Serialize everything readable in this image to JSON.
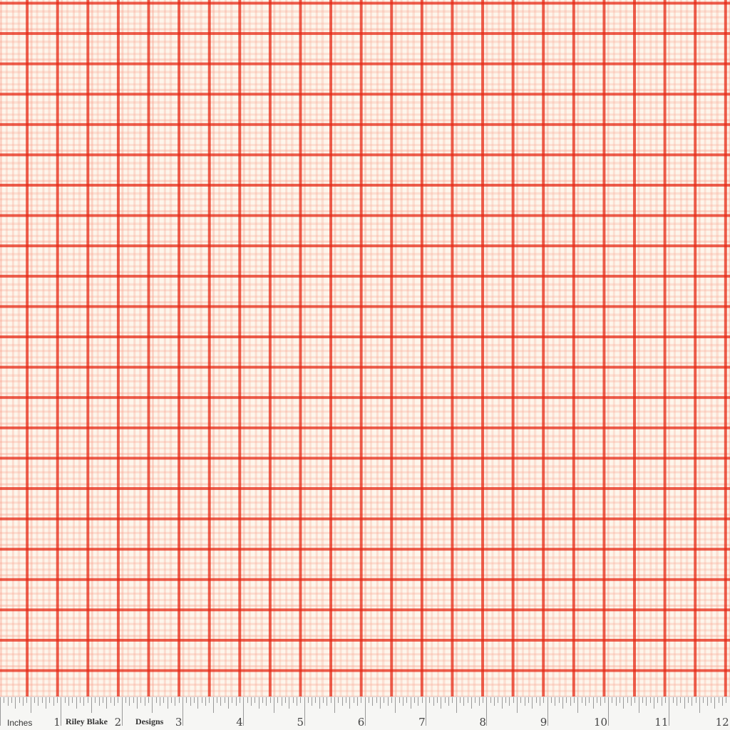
{
  "fabric": {
    "pattern": "plaid",
    "colors": {
      "base": "#fdf6ec",
      "main_line": "#e62814",
      "secondary_line": "#f57850",
      "gingham": "#f8a08c"
    }
  },
  "ruler": {
    "unit_label": "Inches",
    "brand_words": [
      "Riley Blake",
      "Designs"
    ],
    "numbers": [
      "1",
      "2",
      "3",
      "4",
      "5",
      "6",
      "7",
      "8",
      "9",
      "10",
      "11",
      "12"
    ]
  }
}
